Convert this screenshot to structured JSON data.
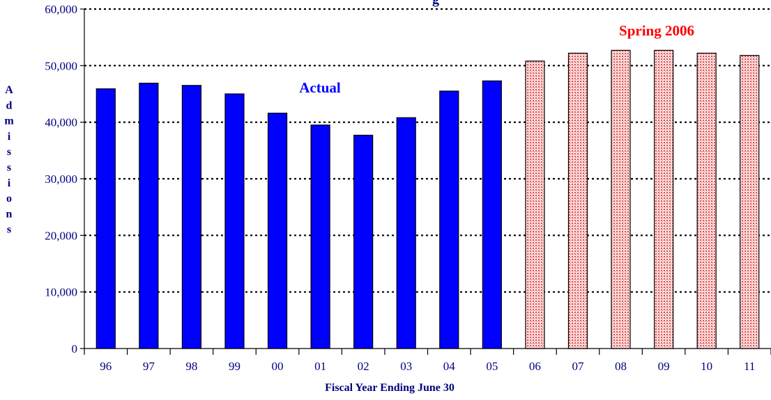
{
  "chart_data": {
    "type": "bar",
    "title": "",
    "xlabel": "Fiscal Year Ending June 30",
    "ylabel": "Admissions",
    "categories": [
      "96",
      "97",
      "98",
      "99",
      "00",
      "01",
      "02",
      "03",
      "04",
      "05",
      "06",
      "07",
      "08",
      "09",
      "10",
      "11"
    ],
    "series": [
      {
        "name": "Actual",
        "color": "#0000ff",
        "values": [
          45900,
          46900,
          46500,
          45000,
          41600,
          39500,
          37700,
          40800,
          45500,
          47300,
          null,
          null,
          null,
          null,
          null,
          null
        ]
      },
      {
        "name": "Spring 2006",
        "color": "#f8c8c8",
        "values": [
          null,
          null,
          null,
          null,
          null,
          null,
          null,
          null,
          null,
          null,
          50800,
          52200,
          52700,
          52700,
          52200,
          51800
        ]
      }
    ],
    "ylim": [
      0,
      60000
    ],
    "yticks": [
      "0",
      "10,000",
      "20,000",
      "30,000",
      "40,000",
      "50,000",
      "60,000"
    ],
    "grid": true,
    "title_fragment": "g"
  }
}
